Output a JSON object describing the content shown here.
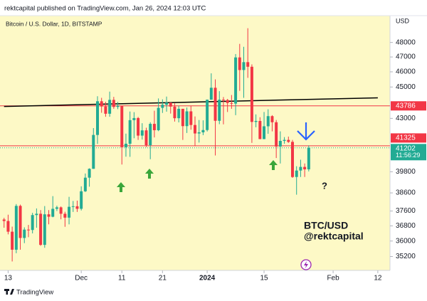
{
  "header": {
    "publisher": "rektcapital published on TradingView.com, Jan 26, 2024 12:03 UTC"
  },
  "footer": {
    "brand": "TradingView"
  },
  "chart_data": {
    "type": "candlestick",
    "title": "Bitcoin / U.S. Dollar, 1D, BITSTAMP",
    "currency": "USD",
    "log_scale": true,
    "up_color": "#22ab94",
    "down_color": "#f23645",
    "x": [
      "2023-11-12",
      "2023-11-13",
      "2023-11-14",
      "2023-11-15",
      "2023-11-16",
      "2023-11-17",
      "2023-11-18",
      "2023-11-19",
      "2023-11-20",
      "2023-11-21",
      "2023-11-22",
      "2023-11-23",
      "2023-11-24",
      "2023-11-25",
      "2023-11-26",
      "2023-11-27",
      "2023-11-28",
      "2023-11-29",
      "2023-11-30",
      "2023-12-01",
      "2023-12-02",
      "2023-12-03",
      "2023-12-04",
      "2023-12-05",
      "2023-12-06",
      "2023-12-07",
      "2023-12-08",
      "2023-12-09",
      "2023-12-10",
      "2023-12-11",
      "2023-12-12",
      "2023-12-13",
      "2023-12-14",
      "2023-12-15",
      "2023-12-16",
      "2023-12-17",
      "2023-12-18",
      "2023-12-19",
      "2023-12-20",
      "2023-12-21",
      "2023-12-22",
      "2023-12-23",
      "2023-12-24",
      "2023-12-25",
      "2023-12-26",
      "2023-12-27",
      "2023-12-28",
      "2023-12-29",
      "2023-12-30",
      "2023-12-31",
      "2024-01-01",
      "2024-01-02",
      "2024-01-03",
      "2024-01-04",
      "2024-01-05",
      "2024-01-06",
      "2024-01-07",
      "2024-01-08",
      "2024-01-09",
      "2024-01-10",
      "2024-01-11",
      "2024-01-12",
      "2024-01-13",
      "2024-01-14",
      "2024-01-15",
      "2024-01-16",
      "2024-01-17",
      "2024-01-18",
      "2024-01-19",
      "2024-01-20",
      "2024-01-21",
      "2024-01-22",
      "2024-01-23",
      "2024-01-24",
      "2024-01-25",
      "2024-01-26"
    ],
    "open": [
      37140,
      37060,
      36490,
      35550,
      37880,
      36160,
      36600,
      36580,
      37380,
      37450,
      35800,
      37420,
      37290,
      37720,
      37800,
      37450,
      37240,
      37830,
      37860,
      37720,
      38690,
      39460,
      39970,
      41980,
      44080,
      43750,
      43290,
      44170,
      43720,
      43790,
      41240,
      41450,
      42890,
      43020,
      41940,
      42260,
      41360,
      42660,
      42270,
      43660,
      43860,
      43990,
      43740,
      43010,
      43600,
      42520,
      43440,
      42590,
      42070,
      42140,
      42280,
      44180,
      44950,
      42850,
      44180,
      44160,
      43970,
      43930,
      46970,
      46120,
      46650,
      46340,
      42780,
      42840,
      41730,
      42510,
      43140,
      42760,
      41280,
      41620,
      41680,
      41560,
      39500,
      39870,
      40080,
      39940
    ],
    "high": [
      37230,
      37400,
      36760,
      37980,
      37950,
      36720,
      36850,
      37500,
      37740,
      37650,
      37870,
      37650,
      38420,
      37890,
      37850,
      37560,
      38380,
      38150,
      38170,
      38970,
      39700,
      40000,
      42400,
      44400,
      44300,
      44050,
      44700,
      44360,
      44040,
      43800,
      42060,
      43430,
      43390,
      43090,
      42700,
      42420,
      42760,
      43480,
      44260,
      44200,
      44380,
      44000,
      43950,
      43800,
      43600,
      43680,
      43800,
      43120,
      42900,
      42880,
      44190,
      45900,
      45500,
      44730,
      44350,
      44230,
      44480,
      47200,
      47900,
      47700,
      49000,
      46500,
      43250,
      43070,
      43400,
      43570,
      43200,
      42900,
      42200,
      41850,
      41880,
      41680,
      40120,
      40500,
      40280,
      41350
    ],
    "low": [
      36700,
      36350,
      34950,
      35370,
      35550,
      35890,
      36200,
      36400,
      36700,
      35750,
      35650,
      36880,
      37260,
      37600,
      37150,
      36750,
      36880,
      37550,
      37550,
      37630,
      38650,
      38950,
      39970,
      41440,
      43350,
      43100,
      43100,
      43600,
      43580,
      40220,
      40680,
      40670,
      41780,
      41680,
      41700,
      41250,
      40530,
      41830,
      42210,
      43340,
      43420,
      43300,
      42800,
      42750,
      41680,
      42100,
      42300,
      41300,
      41520,
      41970,
      42190,
      44180,
      40750,
      42640,
      42630,
      43400,
      43600,
      43200,
      44750,
      44300,
      45600,
      41500,
      42450,
      41720,
      41720,
      42050,
      42200,
      40600,
      40280,
      41450,
      41500,
      39450,
      38500,
      39500,
      39500,
      39820
    ],
    "close": [
      37060,
      36490,
      35550,
      37880,
      36160,
      36600,
      36580,
      37380,
      37450,
      35800,
      37420,
      37290,
      37720,
      37800,
      37450,
      37240,
      37830,
      37860,
      37720,
      38690,
      39460,
      39970,
      41980,
      44080,
      43750,
      43290,
      44170,
      43720,
      43790,
      41240,
      41450,
      42890,
      43020,
      41940,
      42260,
      41360,
      42660,
      42270,
      43660,
      43860,
      43990,
      43740,
      43010,
      43600,
      42520,
      43440,
      42590,
      42070,
      42140,
      42280,
      44180,
      44950,
      42850,
      44180,
      44160,
      43970,
      43930,
      46970,
      46120,
      46650,
      46340,
      42780,
      42840,
      41730,
      42510,
      43140,
      42760,
      41280,
      41620,
      41680,
      41560,
      39500,
      39870,
      40080,
      39940,
      41202
    ],
    "xlim": [
      "2023-11-11",
      "2024-02-15"
    ],
    "xticks": [
      {
        "value": "2023-11-13",
        "label": "13"
      },
      {
        "value": "2023-12-01",
        "label": "Dec"
      },
      {
        "value": "2023-12-11",
        "label": "11"
      },
      {
        "value": "2023-12-21",
        "label": "21"
      },
      {
        "value": "2024-01-01",
        "label": "2024"
      },
      {
        "value": "2024-01-15",
        "label": "15"
      },
      {
        "value": "2024-02-01",
        "label": "Feb"
      },
      {
        "value": "2024-02-12",
        "label": "12"
      }
    ],
    "ylim": [
      34500,
      49900
    ],
    "yticks": [
      35200,
      36000,
      36800,
      37600,
      38600,
      39800,
      43000,
      45000,
      46000,
      47000,
      48000
    ],
    "trendline": {
      "x": [
        "2023-11-12",
        "2024-02-12"
      ],
      "values": [
        43750,
        44300
      ],
      "color": "#000000"
    },
    "hlines": [
      {
        "value": 43786,
        "color": "#f23645"
      },
      {
        "value": 41325,
        "color": "#f23645"
      }
    ],
    "last_price": {
      "value": 41202,
      "color": "#22ab94",
      "countdown": "11:56:29"
    },
    "annotations": {
      "question": "?",
      "pair": "BTC/USD",
      "handle": "@rektcapital"
    }
  }
}
